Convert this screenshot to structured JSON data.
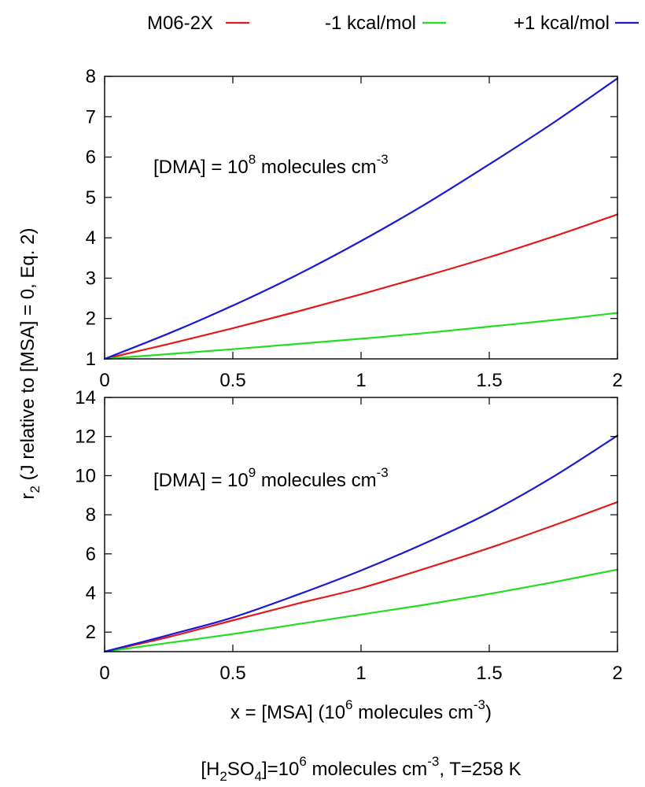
{
  "chart_data": [
    {
      "type": "line",
      "annotation": {
        "prefix": "[DMA] = 10",
        "exponent": "8",
        "mid": " molecules cm",
        "exponent2": "-3"
      },
      "xlim": [
        0,
        2
      ],
      "ylim": [
        1,
        8
      ],
      "x_ticks": [
        0,
        0.5,
        1,
        1.5,
        2
      ],
      "x_tick_labels": [
        "0",
        "0.5",
        "1",
        "1.5",
        "2"
      ],
      "y_ticks": [
        1,
        2,
        3,
        4,
        5,
        6,
        7,
        8
      ],
      "y_tick_labels": [
        "1",
        "2",
        "3",
        "4",
        "5",
        "6",
        "7",
        "8"
      ],
      "x": [
        0,
        0.25,
        0.5,
        0.75,
        1,
        1.25,
        1.5,
        1.75,
        2
      ],
      "series": [
        {
          "name": "M06-2X",
          "color": "#e31a1c",
          "values": [
            1.0,
            1.37,
            1.76,
            2.17,
            2.6,
            3.05,
            3.52,
            4.03,
            4.58
          ]
        },
        {
          "name": "-1 kcal/mol",
          "color": "#22dd22",
          "values": [
            1.0,
            1.12,
            1.24,
            1.37,
            1.5,
            1.64,
            1.8,
            1.96,
            2.14
          ]
        },
        {
          "name": "+1 kcal/mol",
          "color": "#1a1ad4",
          "values": [
            1.0,
            1.63,
            2.32,
            3.08,
            3.92,
            4.83,
            5.82,
            6.85,
            7.95
          ]
        }
      ]
    },
    {
      "type": "line",
      "annotation": {
        "prefix": "[DMA] = 10",
        "exponent": "9",
        "mid": " molecules cm",
        "exponent2": "-3"
      },
      "xlim": [
        0,
        2
      ],
      "ylim": [
        1,
        14
      ],
      "x_ticks": [
        0,
        0.5,
        1,
        1.5,
        2
      ],
      "x_tick_labels": [
        "0",
        "0.5",
        "1",
        "1.5",
        "2"
      ],
      "y_ticks": [
        2,
        4,
        6,
        8,
        10,
        12,
        14
      ],
      "y_tick_labels": [
        "2",
        "4",
        "6",
        "8",
        "10",
        "12",
        "14"
      ],
      "x": [
        0,
        0.25,
        0.5,
        0.75,
        1,
        1.25,
        1.5,
        1.75,
        2
      ],
      "series": [
        {
          "name": "M06-2X",
          "color": "#e31a1c",
          "values": [
            1.0,
            1.75,
            2.6,
            3.45,
            4.25,
            5.25,
            6.3,
            7.45,
            8.65
          ]
        },
        {
          "name": "-1 kcal/mol",
          "color": "#22dd22",
          "values": [
            1.0,
            1.45,
            1.9,
            2.4,
            2.9,
            3.4,
            3.95,
            4.55,
            5.2
          ]
        },
        {
          "name": "+1 kcal/mol",
          "color": "#1a1ad4",
          "values": [
            1.0,
            1.85,
            2.75,
            3.9,
            5.15,
            6.55,
            8.1,
            9.95,
            12.05
          ]
        }
      ]
    }
  ],
  "legend": [
    {
      "label": "M06-2X",
      "color": "#e31a1c"
    },
    {
      "label": "-1 kcal/mol",
      "color": "#22dd22"
    },
    {
      "label": "+1 kcal/mol",
      "color": "#1a1ad4"
    }
  ],
  "ylabel": {
    "r": "r",
    "sub": "2",
    "rest": " (J relative to [MSA] = 0, Eq. 2)"
  },
  "xlabel": {
    "prefix": "x = [MSA] (10",
    "exp1": "6",
    "mid": " molecules cm",
    "exp2": "-3",
    "suffix": ")"
  },
  "footer": {
    "p1": "[H",
    "s1": "2",
    "p2": "SO",
    "s2": "4",
    "p3": "]=10",
    "e1": "6",
    "p4": " molecules cm",
    "e2": "-3",
    "p5": ", T=258 K"
  }
}
